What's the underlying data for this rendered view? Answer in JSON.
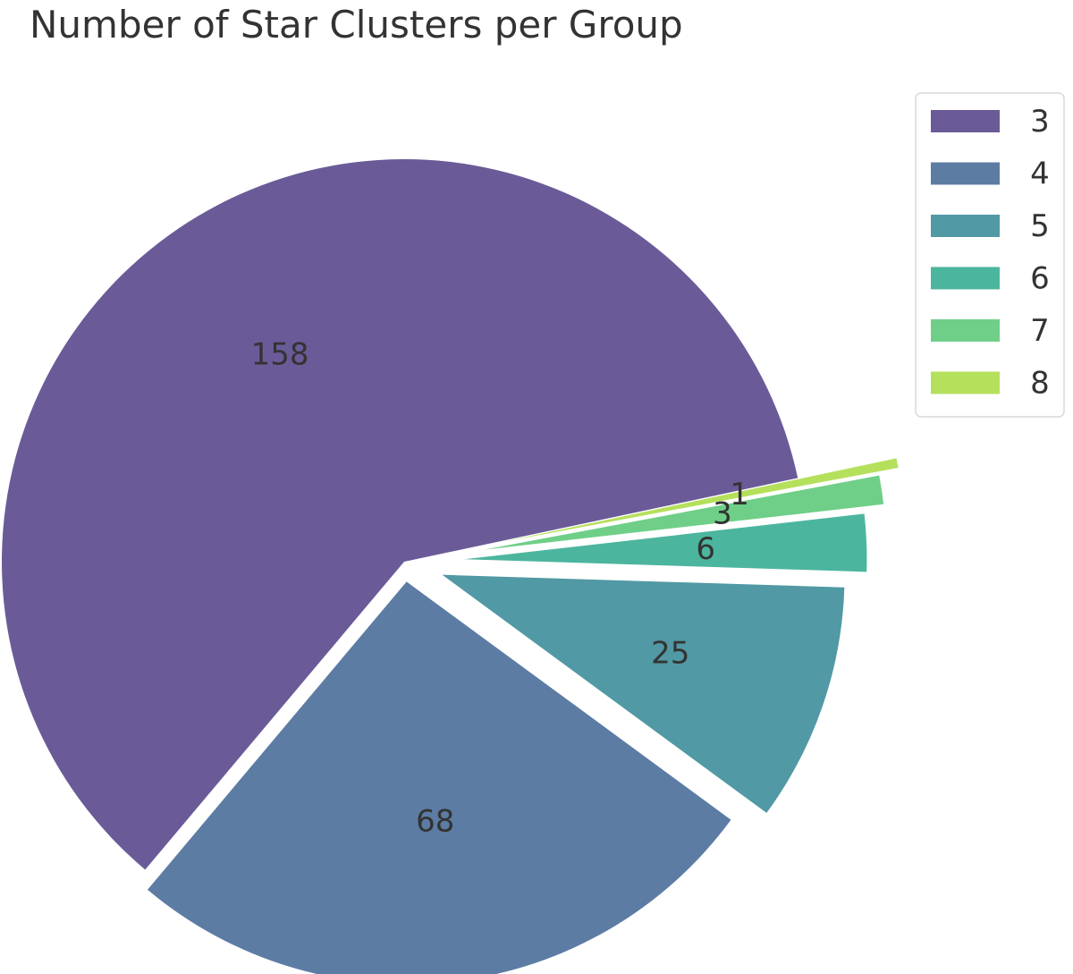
{
  "chart_data": {
    "type": "pie",
    "title": "Number of Star Clusters per Group",
    "categories": [
      "3",
      "4",
      "5",
      "6",
      "7",
      "8"
    ],
    "values": [
      158,
      68,
      25,
      6,
      3,
      1
    ],
    "labels": [
      "158",
      "68",
      "25",
      "6",
      "3",
      "1"
    ],
    "colors": [
      "#6a5b98",
      "#5c7ca4",
      "#5199a4",
      "#4cb59e",
      "#6fcf88",
      "#b5e05c"
    ],
    "explode": [
      0,
      0.05,
      0.1,
      0.15,
      0.2,
      0.25
    ],
    "legend_placement": "top-right",
    "start_angle_deg": 12
  }
}
